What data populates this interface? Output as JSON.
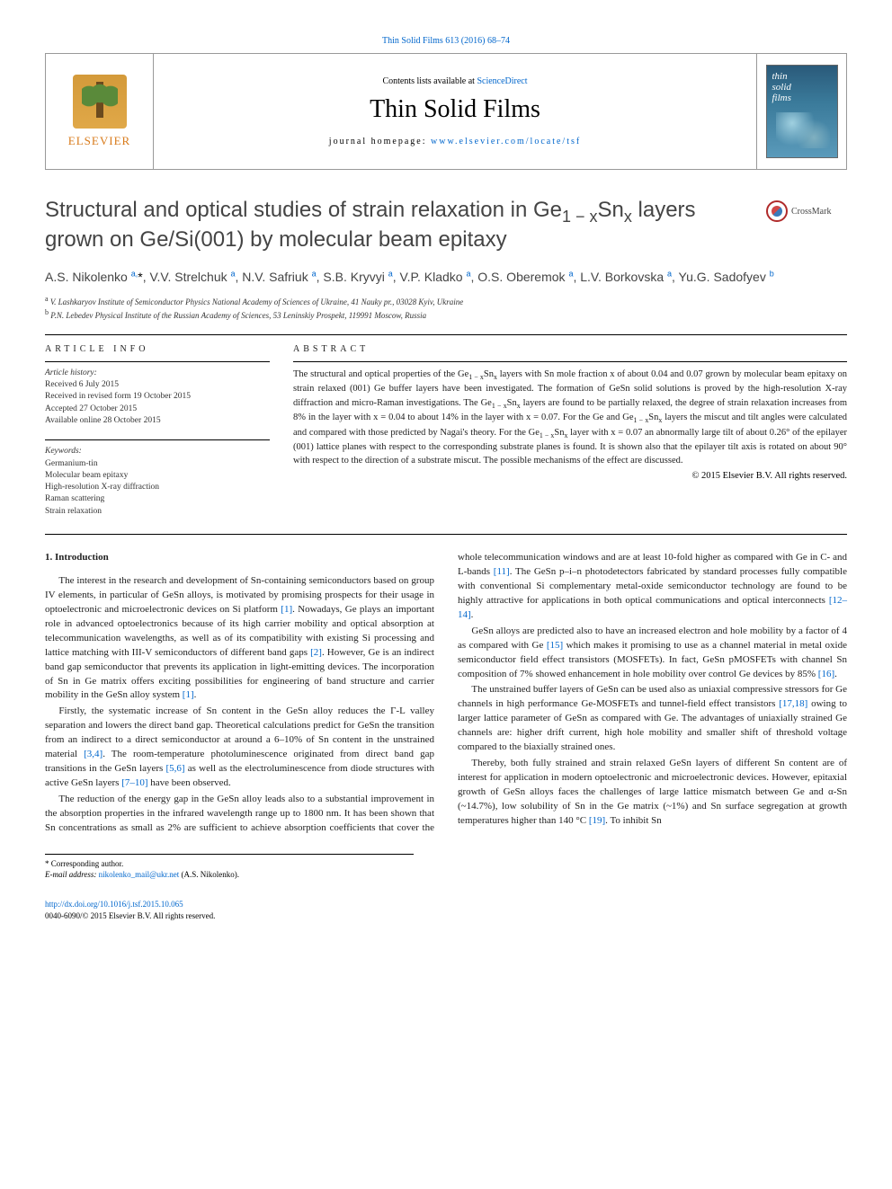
{
  "top_reference": {
    "prefix": "",
    "link_text": "Thin Solid Films 613 (2016) 68–74"
  },
  "header": {
    "contents_prefix": "Contents lists available at ",
    "contents_link": "ScienceDirect",
    "journal_title": "Thin Solid Films",
    "homepage_prefix": "journal homepage: ",
    "homepage_link": "www.elsevier.com/locate/tsf",
    "publisher_name": "ELSEVIER",
    "cover_text_line1": "thin",
    "cover_text_line2": "solid",
    "cover_text_line3": "films"
  },
  "crossmark_label": "CrossMark",
  "article_title_html": "Structural and optical studies of strain relaxation in Ge<sub>1 − x</sub>Sn<sub>x</sub> layers grown on Ge/Si(001) by molecular beam epitaxy",
  "authors_html": "A.S. Nikolenko <sup>a,</sup><span class='star'>*</span>, V.V. Strelchuk <sup>a</sup>, N.V. Safriuk <sup>a</sup>, S.B. Kryvyi <sup>a</sup>, V.P. Kladko <sup>a</sup>, O.S. Oberemok <sup>a</sup>, L.V. Borkovska <sup>a</sup>, Yu.G. Sadofyev <sup>b</sup>",
  "affiliations": [
    {
      "sup": "a",
      "text": "V. Lashkaryov Institute of Semiconductor Physics National Academy of Sciences of Ukraine, 41 Nauky pr., 03028 Kyiv, Ukraine"
    },
    {
      "sup": "b",
      "text": "P.N. Lebedev Physical Institute of the Russian Academy of Sciences, 53 Leninskiy Prospekt, 119991 Moscow, Russia"
    }
  ],
  "info": {
    "heading": "article info",
    "history_heading": "Article history:",
    "history_lines": [
      "Received 6 July 2015",
      "Received in revised form 19 October 2015",
      "Accepted 27 October 2015",
      "Available online 28 October 2015"
    ],
    "keywords_heading": "Keywords:",
    "keywords": [
      "Germanium-tin",
      "Molecular beam epitaxy",
      "High-resolution X-ray diffraction",
      "Raman scattering",
      "Strain relaxation"
    ]
  },
  "abstract": {
    "heading": "abstract",
    "text_html": "The structural and optical properties of the Ge<sub>1 − x</sub>Sn<sub>x</sub> layers with Sn mole fraction x of about 0.04 and 0.07 grown by molecular beam epitaxy on strain relaxed (001) Ge buffer layers have been investigated. The formation of GeSn solid solutions is proved by the high-resolution X-ray diffraction and micro-Raman investigations. The Ge<sub>1 − x</sub>Sn<sub>x</sub> layers are found to be partially relaxed, the degree of strain relaxation increases from 8% in the layer with x = 0.04 to about 14% in the layer with x = 0.07. For the Ge and Ge<sub>1 − x</sub>Sn<sub>x</sub> layers the miscut and tilt angles were calculated and compared with those predicted by Nagai's theory. For the Ge<sub>1 − x</sub>Sn<sub>x</sub> layer with x = 0.07 an abnormally large tilt of about 0.26° of the epilayer (001) lattice planes with respect to the corresponding substrate planes is found. It is shown also that the epilayer tilt axis is rotated on about 90° with respect to the direction of a substrate miscut. The possible mechanisms of the effect are discussed.",
    "copyright": "© 2015 Elsevier B.V. All rights reserved."
  },
  "body": {
    "section_heading": "1. Introduction",
    "paragraphs_html": [
      "The interest in the research and development of Sn-containing semiconductors based on group IV elements, in particular of GeSn alloys, is motivated by promising prospects for their usage in optoelectronic and microelectronic devices on Si platform <span class='ref'>[1]</span>. Nowadays, Ge plays an important role in advanced optoelectronics because of its high carrier mobility and optical absorption at telecommunication wavelengths, as well as of its compatibility with existing Si processing and lattice matching with III-V semiconductors of different band gaps <span class='ref'>[2]</span>. However, Ge is an indirect band gap semiconductor that prevents its application in light-emitting devices. The incorporation of Sn in Ge matrix offers exciting possibilities for engineering of band structure and carrier mobility in the GeSn alloy system <span class='ref'>[1]</span>.",
      "Firstly, the systematic increase of Sn content in the GeSn alloy reduces the Γ-L valley separation and lowers the direct band gap. Theoretical calculations predict for GeSn the transition from an indirect to a direct semiconductor at around a 6–10% of Sn content in the unstrained material <span class='ref'>[3,4]</span>. The room-temperature photoluminescence originated from direct band gap transitions in the GeSn layers <span class='ref'>[5,6]</span> as well as the electroluminescence from diode structures with active GeSn layers <span class='ref'>[7–10]</span> have been observed.",
      "The reduction of the energy gap in the GeSn alloy leads also to a substantial improvement in the absorption properties in the infrared wavelength range up to 1800 nm. It has been shown that Sn concentrations as small as 2% are sufficient to achieve absorption coefficients that cover the whole telecommunication windows and are at least 10-fold higher as compared with Ge in C- and L-bands <span class='ref'>[11]</span>. The GeSn p–i–n photodetectors fabricated by standard processes fully compatible with conventional Si complementary metal-oxide semiconductor technology are found to be highly attractive for applications in both optical communications and optical interconnects <span class='ref'>[12–14]</span>.",
      "GeSn alloys are predicted also to have an increased electron and hole mobility by a factor of 4 as compared with Ge <span class='ref'>[15]</span> which makes it promising to use as a channel material in metal oxide semiconductor field effect transistors (MOSFETs). In fact, GeSn pMOSFETs with channel Sn composition of 7% showed enhancement in hole mobility over control Ge devices by 85% <span class='ref'>[16]</span>.",
      "The unstrained buffer layers of GeSn can be used also as uniaxial compressive stressors for Ge channels in high performance Ge-MOSFETs and tunnel-field effect transistors <span class='ref'>[17,18]</span> owing to larger lattice parameter of GeSn as compared with Ge. The advantages of uniaxially strained Ge channels are: higher drift current, high hole mobility and smaller shift of threshold voltage compared to the biaxially strained ones.",
      "Thereby, both fully strained and strain relaxed GeSn layers of different Sn content are of interest for application in modern optoelectronic and microelectronic devices. However, epitaxial growth of GeSn alloys faces the challenges of large lattice mismatch between Ge and α-Sn (~14.7%), low solubility of Sn in the Ge matrix (~1%) and Sn surface segregation at growth temperatures higher than 140 °C <span class='ref'>[19]</span>. To inhibit Sn"
    ]
  },
  "footnotes": {
    "corresponding": "* Corresponding author.",
    "email_label": "E-mail address:",
    "email_link": "nikolenko_mail@ukr.net",
    "email_person": "(A.S. Nikolenko)."
  },
  "footer": {
    "doi_link": "http://dx.doi.org/10.1016/j.tsf.2015.10.065",
    "issn_line": "0040-6090/© 2015 Elsevier B.V. All rights reserved."
  },
  "colors": {
    "link": "#0066cc",
    "publisher_orange": "#d87a1a",
    "crossmark_ring": "#b02a2a",
    "text": "#222222"
  }
}
